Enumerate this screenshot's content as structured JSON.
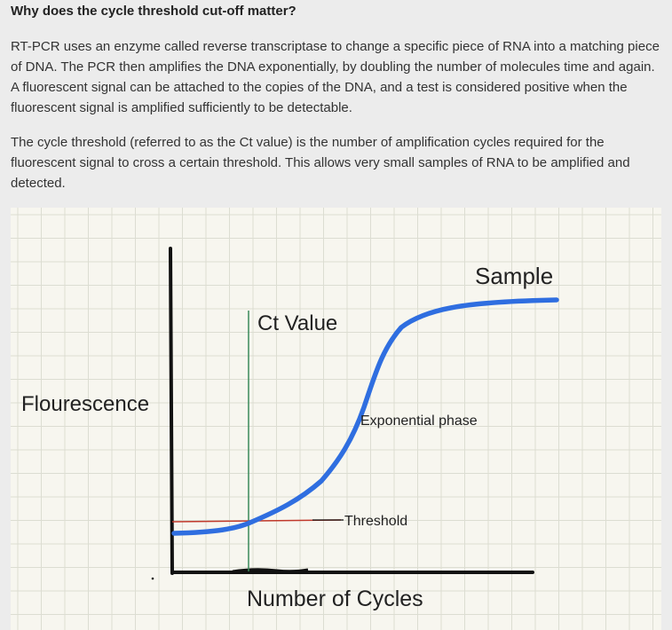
{
  "article": {
    "heading": "Why does the cycle threshold cut-off matter?",
    "paragraph_1": "RT-PCR uses an enzyme called reverse transcriptase to change a specific piece of RNA into a matching piece of DNA. The PCR then amplifies the DNA exponentially, by doubling the number of molecules time and again. A fluorescent signal can be attached to the copies of the DNA, and a test is considered positive when the fluorescent signal is amplified sufficiently to be detectable.",
    "paragraph_2": "The cycle threshold (referred to as the Ct value) is the number of amplification cycles required for the fluorescent signal to cross a certain threshold. This allows very small samples of RNA to be amplified and detected."
  },
  "diagram": {
    "y_axis_label": "Flourescence",
    "x_axis_label": "Number of Cycles",
    "ct_label": "Ct Value",
    "sample_label": "Sample",
    "exponential_label": "Exponential phase",
    "threshold_label": "Threshold",
    "colors": {
      "paper": "#f7f6ef",
      "grid": "#dcddd2",
      "curve": "#2f6ee0",
      "threshold_line": "#c0392b",
      "ct_line": "#3a8a5a",
      "axes": "#111111"
    }
  }
}
